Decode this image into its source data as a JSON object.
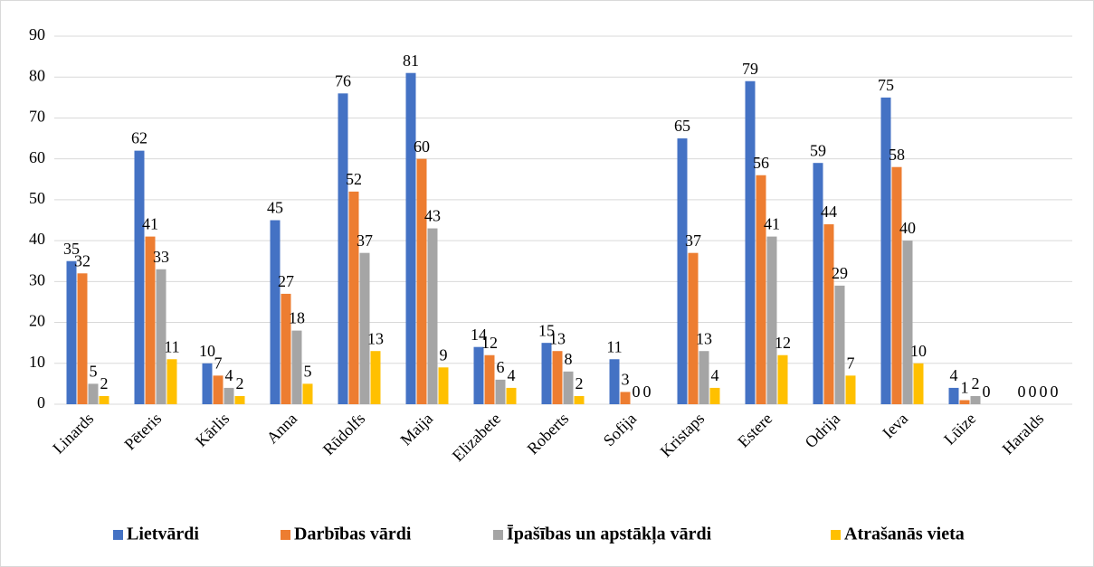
{
  "chart_data": {
    "type": "bar",
    "categories": [
      "Linards",
      "Pēteris",
      "Kārlis",
      "Anna",
      "Rūdolfs",
      "Maija",
      "Elizabete",
      "Roberts",
      "Sofija",
      "Kristaps",
      "Estere",
      "Odrija",
      "Ieva",
      "Lūize",
      "Haralds"
    ],
    "series": [
      {
        "name": "Lietvārdi",
        "color": "#4472c4",
        "values": [
          35,
          62,
          10,
          45,
          76,
          81,
          14,
          15,
          11,
          65,
          79,
          59,
          75,
          4,
          0
        ]
      },
      {
        "name": "Darbības vārdi",
        "color": "#ed7d31",
        "values": [
          32,
          41,
          7,
          27,
          52,
          60,
          12,
          13,
          3,
          37,
          56,
          44,
          58,
          1,
          0
        ]
      },
      {
        "name": "Īpašības un apstākļa vārdi",
        "color": "#a5a5a5",
        "values": [
          5,
          33,
          4,
          18,
          37,
          43,
          6,
          8,
          0,
          13,
          41,
          29,
          40,
          2,
          0
        ]
      },
      {
        "name": "Atrašanās vieta",
        "color": "#ffc000",
        "values": [
          2,
          11,
          2,
          5,
          13,
          9,
          4,
          2,
          0,
          4,
          12,
          7,
          10,
          0,
          0
        ]
      }
    ],
    "ylim": [
      0,
      90
    ],
    "yticks": [
      0,
      10,
      20,
      30,
      40,
      50,
      60,
      70,
      80,
      90
    ],
    "grid": true,
    "legend": "bottom"
  }
}
